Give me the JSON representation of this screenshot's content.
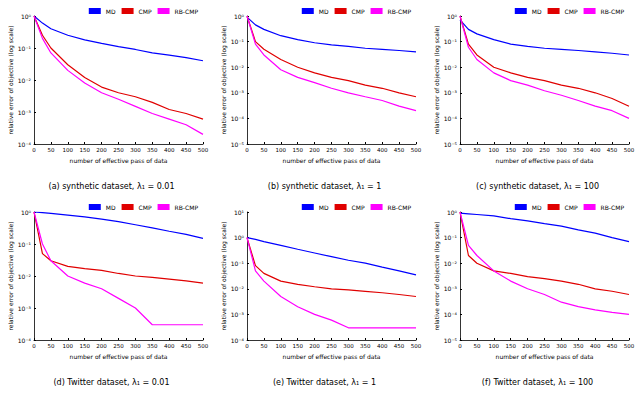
{
  "chart_data": [
    {
      "type": "line",
      "title": "(a) synthetic dataset, λ₁ = 0.01",
      "xlabel": "number of effective pass of data",
      "ylabel": "relative error of objective (log scale)",
      "log": "y",
      "grid": false,
      "legend": "upper right",
      "xlim": [
        0,
        500
      ],
      "xticks": [
        0,
        50,
        100,
        150,
        200,
        250,
        300,
        350,
        400,
        450,
        500
      ],
      "ylim": [
        0.0001,
        1
      ],
      "yticks": [
        {
          "value": 0.0001,
          "label": "10⁻⁴"
        },
        {
          "value": 0.001,
          "label": "10⁻³"
        },
        {
          "value": 0.01,
          "label": "10⁻²"
        },
        {
          "value": 0.1,
          "label": "10⁻¹"
        },
        {
          "value": 1,
          "label": "10⁰"
        }
      ],
      "x": [
        0,
        25,
        50,
        100,
        150,
        200,
        250,
        300,
        350,
        400,
        450,
        500
      ],
      "series": [
        {
          "name": "MD",
          "color": "#0000ff",
          "values": [
            1,
            0.6,
            0.4,
            0.25,
            0.18,
            0.14,
            0.11,
            0.09,
            0.07,
            0.06,
            0.05,
            0.04
          ]
        },
        {
          "name": "CMP",
          "color": "#e00000",
          "values": [
            1,
            0.25,
            0.1,
            0.03,
            0.012,
            0.006,
            0.004,
            0.003,
            0.002,
            0.0012,
            0.0009,
            0.0006
          ]
        },
        {
          "name": "RB-CMP",
          "color": "#ff00ff",
          "values": [
            1,
            0.2,
            0.07,
            0.02,
            0.008,
            0.004,
            0.0025,
            0.0015,
            0.0009,
            0.0006,
            0.0004,
            0.0002
          ]
        }
      ]
    },
    {
      "type": "line",
      "title": "(b) synthetic dataset, λ₁ = 1",
      "xlabel": "number of effective pass of data",
      "ylabel": "relative error of objective (log scale)",
      "log": "y",
      "grid": false,
      "legend": "upper right",
      "xlim": [
        0,
        500
      ],
      "xticks": [
        0,
        50,
        100,
        150,
        200,
        250,
        300,
        350,
        400,
        450,
        500
      ],
      "ylim": [
        1e-05,
        1
      ],
      "yticks": [
        {
          "value": 1e-05,
          "label": "10⁻⁵"
        },
        {
          "value": 0.0001,
          "label": "10⁻⁴"
        },
        {
          "value": 0.001,
          "label": "10⁻³"
        },
        {
          "value": 0.01,
          "label": "10⁻²"
        },
        {
          "value": 0.1,
          "label": "10⁻¹"
        },
        {
          "value": 1,
          "label": "10⁰"
        }
      ],
      "x": [
        0,
        25,
        50,
        100,
        150,
        200,
        250,
        300,
        350,
        400,
        450,
        500
      ],
      "series": [
        {
          "name": "MD",
          "color": "#0000ff",
          "values": [
            0.9,
            0.45,
            0.3,
            0.17,
            0.12,
            0.09,
            0.075,
            0.065,
            0.055,
            0.05,
            0.045,
            0.04
          ]
        },
        {
          "name": "CMP",
          "color": "#e00000",
          "values": [
            1,
            0.1,
            0.05,
            0.02,
            0.01,
            0.006,
            0.004,
            0.003,
            0.002,
            0.0015,
            0.001,
            0.0007
          ]
        },
        {
          "name": "RB-CMP",
          "color": "#ff00ff",
          "values": [
            1,
            0.08,
            0.03,
            0.008,
            0.004,
            0.0025,
            0.0015,
            0.001,
            0.0007,
            0.0005,
            0.0003,
            0.0002
          ]
        }
      ]
    },
    {
      "type": "line",
      "title": "(c) synthetic dataset, λ₁ = 100",
      "xlabel": "number of effective pass of data",
      "ylabel": "relative error of objective (log scale)",
      "log": "y",
      "grid": false,
      "legend": "upper right",
      "xlim": [
        0,
        500
      ],
      "xticks": [
        0,
        50,
        100,
        150,
        200,
        250,
        300,
        350,
        400,
        450,
        500
      ],
      "ylim": [
        1e-05,
        1
      ],
      "yticks": [
        {
          "value": 1e-05,
          "label": "10⁻⁵"
        },
        {
          "value": 0.0001,
          "label": "10⁻⁴"
        },
        {
          "value": 0.001,
          "label": "10⁻³"
        },
        {
          "value": 0.01,
          "label": "10⁻²"
        },
        {
          "value": 0.1,
          "label": "10⁻¹"
        },
        {
          "value": 1,
          "label": "10⁰"
        }
      ],
      "x": [
        0,
        25,
        50,
        100,
        150,
        200,
        250,
        300,
        350,
        400,
        450,
        500
      ],
      "series": [
        {
          "name": "MD",
          "color": "#0000ff",
          "values": [
            0.7,
            0.3,
            0.2,
            0.12,
            0.08,
            0.065,
            0.055,
            0.05,
            0.045,
            0.04,
            0.035,
            0.03
          ]
        },
        {
          "name": "CMP",
          "color": "#e00000",
          "values": [
            1,
            0.08,
            0.03,
            0.01,
            0.006,
            0.004,
            0.003,
            0.002,
            0.0015,
            0.001,
            0.0006,
            0.0003
          ]
        },
        {
          "name": "RB-CMP",
          "color": "#ff00ff",
          "values": [
            1,
            0.06,
            0.02,
            0.006,
            0.003,
            0.002,
            0.0012,
            0.0008,
            0.0005,
            0.0003,
            0.0002,
            0.0001
          ]
        }
      ]
    },
    {
      "type": "line",
      "title": "(d) Twitter dataset, λ₁ = 0.01",
      "xlabel": "number of effective pass of data",
      "ylabel": "relative error of objective (log scale)",
      "log": "y",
      "grid": false,
      "legend": "upper right",
      "xlim": [
        0,
        500
      ],
      "xticks": [
        0,
        50,
        100,
        150,
        200,
        250,
        300,
        350,
        400,
        450,
        500
      ],
      "ylim": [
        0.0001,
        1
      ],
      "yticks": [
        {
          "value": 0.0001,
          "label": "10⁻⁴"
        },
        {
          "value": 0.001,
          "label": "10⁻³"
        },
        {
          "value": 0.01,
          "label": "10⁻²"
        },
        {
          "value": 0.1,
          "label": "10⁻¹"
        },
        {
          "value": 1,
          "label": "10⁰"
        }
      ],
      "x": [
        0,
        25,
        50,
        100,
        150,
        200,
        250,
        300,
        350,
        400,
        450,
        500
      ],
      "series": [
        {
          "name": "MD",
          "color": "#0000ff",
          "values": [
            1,
            0.95,
            0.9,
            0.8,
            0.7,
            0.6,
            0.5,
            0.4,
            0.32,
            0.25,
            0.2,
            0.15
          ]
        },
        {
          "name": "CMP",
          "color": "#e00000",
          "values": [
            1,
            0.05,
            0.03,
            0.02,
            0.017,
            0.015,
            0.012,
            0.01,
            0.009,
            0.008,
            0.007,
            0.006
          ]
        },
        {
          "name": "RB-CMP",
          "color": "#ff00ff",
          "values": [
            1,
            0.1,
            0.03,
            0.01,
            0.006,
            0.004,
            0.002,
            0.001,
            0.0003,
            0.0003,
            0.0003,
            0.0003
          ]
        }
      ]
    },
    {
      "type": "line",
      "title": "(e) Twitter dataset, λ₁ = 1",
      "xlabel": "number of effective pass of data",
      "ylabel": "relative error of objective (log scale)",
      "log": "y",
      "grid": false,
      "legend": "upper right",
      "xlim": [
        0,
        500
      ],
      "xticks": [
        0,
        50,
        100,
        150,
        200,
        250,
        300,
        350,
        400,
        450,
        500
      ],
      "ylim": [
        0.0001,
        10
      ],
      "yticks": [
        {
          "value": 0.0001,
          "label": "10⁻⁴"
        },
        {
          "value": 0.001,
          "label": "10⁻³"
        },
        {
          "value": 0.01,
          "label": "10⁻²"
        },
        {
          "value": 0.1,
          "label": "10⁻¹"
        },
        {
          "value": 1,
          "label": "10⁰"
        },
        {
          "value": 10,
          "label": "10¹"
        }
      ],
      "x": [
        0,
        25,
        50,
        100,
        150,
        200,
        250,
        300,
        350,
        400,
        450,
        500
      ],
      "series": [
        {
          "name": "MD",
          "color": "#0000ff",
          "values": [
            1,
            0.85,
            0.7,
            0.5,
            0.35,
            0.25,
            0.18,
            0.13,
            0.1,
            0.07,
            0.05,
            0.035
          ]
        },
        {
          "name": "CMP",
          "color": "#e00000",
          "values": [
            1,
            0.08,
            0.04,
            0.02,
            0.015,
            0.012,
            0.01,
            0.009,
            0.008,
            0.007,
            0.006,
            0.005
          ]
        },
        {
          "name": "RB-CMP",
          "color": "#ff00ff",
          "values": [
            1,
            0.05,
            0.02,
            0.005,
            0.002,
            0.001,
            0.0006,
            0.0003,
            0.0003,
            0.0003,
            0.0003,
            0.0003
          ]
        }
      ]
    },
    {
      "type": "line",
      "title": "(f) Twitter dataset, λ₁ = 100",
      "xlabel": "number of effective pass of data",
      "ylabel": "relative error of objective (log scale)",
      "log": "y",
      "grid": false,
      "legend": "upper right",
      "xlim": [
        0,
        500
      ],
      "xticks": [
        0,
        50,
        100,
        150,
        200,
        250,
        300,
        350,
        400,
        450,
        500
      ],
      "ylim": [
        1e-05,
        1
      ],
      "yticks": [
        {
          "value": 1e-05,
          "label": "10⁻⁵"
        },
        {
          "value": 0.0001,
          "label": "10⁻⁴"
        },
        {
          "value": 0.001,
          "label": "10⁻³"
        },
        {
          "value": 0.01,
          "label": "10⁻²"
        },
        {
          "value": 0.1,
          "label": "10⁻¹"
        },
        {
          "value": 1,
          "label": "10⁰"
        }
      ],
      "x": [
        0,
        25,
        50,
        100,
        150,
        200,
        250,
        300,
        350,
        400,
        450,
        500
      ],
      "series": [
        {
          "name": "MD",
          "color": "#0000ff",
          "values": [
            0.9,
            0.85,
            0.8,
            0.7,
            0.55,
            0.45,
            0.35,
            0.28,
            0.2,
            0.15,
            0.1,
            0.07
          ]
        },
        {
          "name": "CMP",
          "color": "#e00000",
          "values": [
            1,
            0.02,
            0.01,
            0.005,
            0.004,
            0.003,
            0.0025,
            0.002,
            0.0015,
            0.001,
            0.0008,
            0.0006
          ]
        },
        {
          "name": "RB-CMP",
          "color": "#ff00ff",
          "values": [
            1,
            0.05,
            0.02,
            0.005,
            0.002,
            0.001,
            0.0006,
            0.0003,
            0.0002,
            0.00015,
            0.00012,
            0.0001
          ]
        }
      ]
    }
  ]
}
